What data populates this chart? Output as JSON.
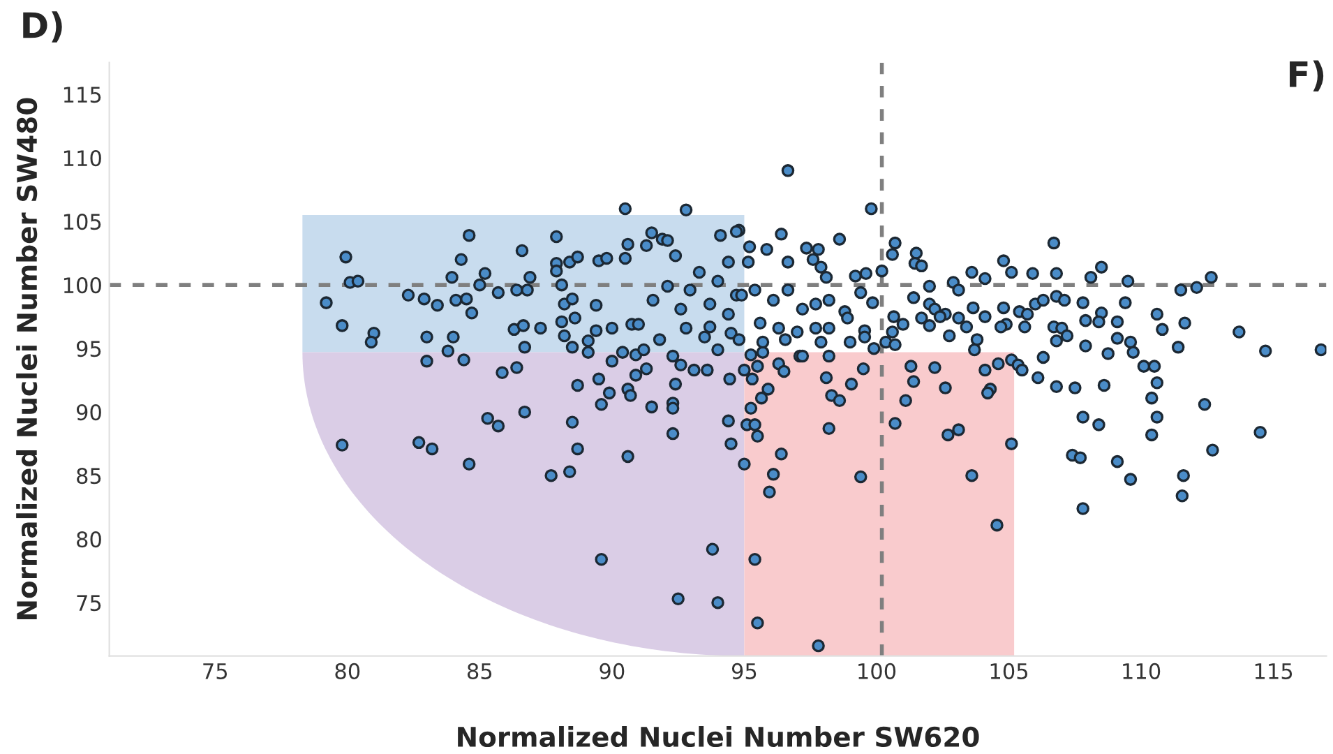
{
  "chart_data": {
    "type": "scatter",
    "xlabel": "Normalized Nuclei Number SW620",
    "ylabel": "Normalized Nuclei Number SW480",
    "annotations": [
      "D)",
      "F)"
    ],
    "xlim": [
      71.0,
      117.0
    ],
    "ylim": [
      70.8,
      117.5
    ],
    "xticks": [
      75,
      80,
      85,
      90,
      95,
      100,
      105,
      110,
      115
    ],
    "yticks": [
      75,
      80,
      85,
      90,
      95,
      100,
      105,
      110,
      115
    ],
    "grid": false,
    "marker": "circle",
    "ref_lines": [
      {
        "axis": "x",
        "value": 100.2,
        "color": "#7f7f7f",
        "line_style": "dashed"
      },
      {
        "axis": "y",
        "value": 100,
        "color": "#7f7f7f",
        "line_style": "dashed"
      }
    ],
    "series": [
      {
        "color": "#4a8cc8",
        "x": [
          79.94,
          79.2,
          79.8,
          80.1,
          80.4,
          81.0,
          80.9,
          82.3,
          82.9,
          83.4,
          83.0,
          83.95,
          84.3,
          84.6,
          84.1,
          84.5,
          84.7,
          84.0,
          83.8,
          85.2,
          85.0,
          85.7,
          86.4,
          86.8,
          86.6,
          86.9,
          86.3,
          86.65,
          86.7,
          87.3,
          87.9,
          87.9,
          87.9,
          88.1,
          88.2,
          88.5,
          88.1,
          88.6,
          88.2,
          88.4,
          88.7,
          88.5,
          89.1,
          89.1,
          89.4,
          89.4,
          89.5,
          89.8,
          90.0,
          90.5,
          90.6,
          90.5,
          92.8,
          90.75,
          91.0,
          90.4,
          90.9,
          91.2,
          91.5,
          91.9,
          92.1,
          91.3,
          91.8,
          92.4,
          94.1,
          94.8,
          92.95,
          93.3,
          93.7,
          94.0,
          94.4,
          92.6,
          92.1,
          91.55,
          94.4,
          94.7,
          92.8,
          93.7,
          93.5,
          94.5,
          94.8,
          92.3,
          92.6,
          93.1,
          93.6,
          94.0,
          83.0,
          84.4,
          85.85,
          86.4,
          88.7,
          89.5,
          89.9,
          90.6,
          90.7,
          90.0,
          90.9,
          91.3,
          89.6,
          91.5,
          92.3,
          92.3,
          92.4,
          94.4,
          94.45,
          79.8,
          82.7,
          83.2,
          84.6,
          85.3,
          85.7,
          86.7,
          88.5,
          88.7,
          87.7,
          88.4,
          90.6,
          92.3,
          94.5,
          89.6,
          93.8,
          92.5,
          94.0,
          95.25,
          95.7,
          95.5,
          95.0,
          95.3,
          95.9,
          95.65,
          96.3,
          96.5,
          97.1,
          95.25,
          95.1,
          95.4,
          95.5,
          96.4,
          95.0,
          96.1,
          95.95,
          95.4,
          95.5,
          97.8,
          98.1,
          98.3,
          98.6,
          98.2,
          99.05,
          99.5,
          99.4,
          100.7,
          101.3,
          101.4,
          101.1,
          102.2,
          102.6,
          102.7,
          103.1,
          103.6,
          104.1,
          104.3,
          104.2,
          104.6,
          105.1,
          105.1,
          104.55,
          105.35,
          105.5,
          106.1,
          106.3,
          106.8,
          107.5,
          108.6,
          107.8,
          108.4,
          107.4,
          107.7,
          109.1,
          109.6,
          107.8,
          110.1,
          110.5,
          110.6,
          110.4,
          110.6,
          110.4,
          111.6,
          111.55,
          112.4,
          112.7,
          114.5,
          116.8,
          114.7,
          111.4,
          96.65,
          99.8,
          100.7,
          100.6,
          101.5,
          101.45,
          101.7,
          106.7,
          100.2,
          103.6,
          104.1,
          104.8,
          105.1,
          105.9,
          106.8,
          108.1,
          108.5,
          109.5,
          112.65,
          111.5,
          112.1,
          102.9,
          103.1,
          102.0,
          101.4,
          102.0,
          102.2,
          102.6,
          103.1,
          103.65,
          104.1,
          104.8,
          105.4,
          105.7,
          106.0,
          106.3,
          106.8,
          107.1,
          107.8,
          108.5,
          109.4,
          110.6,
          111.65,
          110.8,
          113.7,
          104.9,
          104.7,
          105.6,
          106.7,
          107.0,
          107.9,
          108.4,
          109.1,
          106.8,
          107.2,
          107.9,
          108.75,
          109.7,
          109.1,
          109.6,
          102.75,
          103.4,
          103.8,
          103.7,
          102.0,
          101.7,
          102.4,
          100.65,
          101.0,
          100.6,
          100.35,
          100.7,
          99.9,
          96.4,
          95.85,
          95.2,
          97.35,
          97.8,
          98.6,
          96.65,
          97.6,
          97.9,
          98.1,
          99.2,
          99.6,
          95.4,
          96.1,
          96.65,
          97.2,
          97.7,
          98.2,
          98.8,
          99.4,
          99.85,
          95.6,
          96.3,
          97.0,
          97.7,
          98.2,
          98.9,
          99.55,
          97.9,
          99.0,
          99.55,
          95.7,
          96.55,
          97.2,
          98.2,
          95.15,
          94.7,
          94.9
        ],
        "values": [
          102.2,
          98.6,
          96.8,
          100.2,
          100.3,
          96.2,
          95.5,
          99.2,
          98.9,
          98.4,
          95.9,
          100.6,
          102.0,
          103.9,
          98.8,
          98.9,
          97.8,
          95.9,
          94.8,
          100.9,
          100.0,
          99.4,
          99.6,
          99.6,
          102.7,
          100.6,
          96.5,
          96.8,
          95.1,
          96.6,
          103.8,
          101.7,
          101.1,
          100.0,
          98.5,
          98.9,
          97.1,
          97.4,
          96.0,
          101.8,
          102.2,
          95.1,
          95.6,
          94.7,
          96.4,
          98.4,
          101.9,
          102.1,
          96.6,
          102.1,
          103.2,
          106.0,
          105.9,
          96.9,
          96.9,
          94.7,
          94.5,
          94.9,
          104.1,
          103.6,
          103.5,
          103.1,
          95.7,
          102.3,
          103.9,
          104.3,
          99.6,
          101.0,
          98.5,
          100.3,
          97.7,
          98.1,
          99.9,
          98.8,
          101.8,
          99.2,
          96.6,
          96.7,
          95.9,
          96.2,
          95.7,
          94.4,
          93.7,
          93.3,
          93.3,
          94.9,
          94.0,
          94.1,
          93.1,
          93.5,
          92.1,
          92.6,
          91.5,
          91.8,
          91.3,
          94.0,
          92.9,
          93.4,
          90.6,
          90.4,
          90.7,
          90.3,
          92.2,
          89.3,
          92.6,
          87.4,
          87.6,
          87.1,
          85.9,
          89.5,
          88.9,
          90.0,
          89.2,
          87.1,
          85.0,
          85.3,
          86.5,
          88.3,
          87.5,
          78.4,
          79.2,
          75.3,
          75.0,
          94.5,
          94.7,
          93.6,
          93.3,
          92.6,
          91.8,
          91.1,
          93.8,
          93.2,
          94.4,
          90.3,
          89.0,
          89.0,
          88.1,
          86.7,
          85.9,
          85.1,
          83.7,
          78.4,
          73.4,
          71.6,
          92.7,
          91.3,
          90.9,
          88.7,
          92.2,
          93.4,
          84.9,
          89.1,
          93.6,
          92.4,
          90.9,
          93.5,
          91.9,
          88.2,
          88.6,
          85.0,
          93.3,
          91.8,
          91.5,
          93.8,
          94.1,
          87.5,
          81.1,
          93.7,
          93.3,
          92.7,
          94.3,
          92.0,
          91.9,
          92.1,
          89.6,
          89.0,
          86.6,
          86.4,
          86.1,
          84.7,
          82.4,
          93.6,
          93.6,
          92.3,
          91.1,
          89.6,
          88.2,
          85.0,
          83.4,
          90.6,
          87.0,
          88.4,
          94.9,
          94.8,
          95.1,
          109.0,
          106.0,
          103.3,
          102.4,
          102.5,
          101.7,
          101.5,
          103.3,
          101.1,
          101.0,
          100.5,
          101.9,
          101.0,
          100.9,
          100.9,
          100.6,
          101.4,
          100.3,
          100.6,
          99.6,
          99.8,
          100.2,
          99.6,
          99.9,
          99.0,
          98.5,
          98.1,
          97.7,
          97.4,
          98.2,
          97.5,
          98.2,
          97.9,
          97.7,
          98.5,
          98.8,
          99.1,
          98.8,
          98.6,
          97.8,
          98.6,
          97.7,
          97.0,
          96.5,
          96.3,
          96.9,
          96.7,
          96.7,
          96.7,
          96.6,
          97.2,
          97.1,
          97.1,
          95.6,
          96.0,
          95.2,
          94.6,
          94.7,
          95.8,
          95.5,
          96.0,
          96.7,
          95.7,
          94.9,
          96.8,
          97.4,
          97.5,
          97.5,
          96.9,
          96.3,
          95.5,
          95.3,
          95.0,
          104.0,
          102.8,
          103.0,
          102.9,
          102.8,
          103.6,
          101.8,
          102.0,
          101.4,
          100.6,
          100.7,
          100.9,
          99.6,
          98.8,
          99.6,
          98.1,
          98.5,
          98.8,
          97.9,
          99.4,
          98.6,
          97.0,
          96.6,
          96.3,
          96.6,
          96.6,
          97.4,
          96.4,
          95.5,
          95.5,
          95.9,
          95.5,
          95.7,
          94.4,
          94.4,
          101.8,
          104.2,
          99.2
        ]
      }
    ]
  }
}
